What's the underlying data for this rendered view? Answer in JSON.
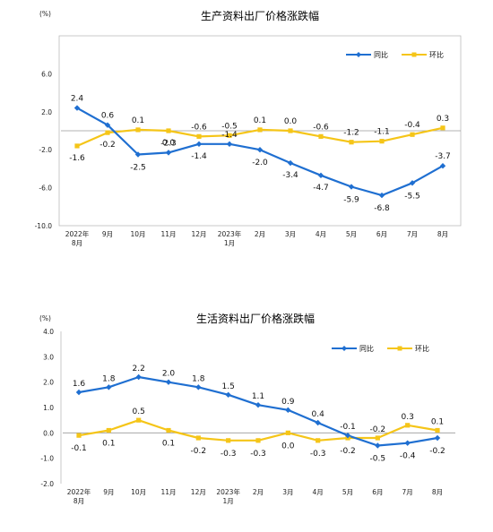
{
  "chart_data": [
    {
      "type": "line",
      "title": "生产资料出厂价格涨跌幅",
      "unit": "(%)",
      "categories": [
        "2022年",
        "9月",
        "10月",
        "11月",
        "12月",
        "2023年",
        "2月",
        "3月",
        "4月",
        "5月",
        "6月",
        "7月",
        "8月"
      ],
      "categories_sub": [
        "8月",
        "",
        "",
        "",
        "",
        "1月",
        "",
        "",
        "",
        "",
        "",
        "",
        ""
      ],
      "yticks": [
        "6.0",
        "2.0",
        "-2.0",
        "-6.0",
        "-10.0"
      ],
      "ylim": [
        -10,
        10
      ],
      "series": [
        {
          "name": "同比",
          "color": "#1f6fd1",
          "marker": "diamond",
          "values": [
            2.4,
            0.6,
            -2.5,
            -2.3,
            -1.4,
            -1.4,
            -2.0,
            -3.4,
            -4.7,
            -5.9,
            -6.8,
            -5.5,
            -3.7
          ],
          "labels": [
            "2.4",
            "0.6",
            "-2.5",
            "-2.3",
            "-1.4",
            "-1.4",
            "-2.0",
            "-3.4",
            "-4.7",
            "-5.9",
            "-6.8",
            "-5.5",
            "-3.7"
          ]
        },
        {
          "name": "环比",
          "color": "#f5c518",
          "marker": "square",
          "values": [
            -1.6,
            -0.2,
            0.1,
            0.0,
            -0.6,
            -0.5,
            0.1,
            0.0,
            -0.6,
            -1.2,
            -1.1,
            -0.4,
            0.3
          ],
          "labels": [
            "-1.6",
            "-0.2",
            "0.1",
            "0.0",
            "-0.6",
            "-0.5",
            "0.1",
            "0.0",
            "-0.6",
            "-1.2",
            "-1.1",
            "-0.4",
            "0.3"
          ]
        }
      ],
      "legend_position": "top-right",
      "grid": false
    },
    {
      "type": "line",
      "title": "生活资料出厂价格涨跌幅",
      "unit": "(%)",
      "categories": [
        "2022年",
        "9月",
        "10月",
        "11月",
        "12月",
        "2023年",
        "2月",
        "3月",
        "4月",
        "5月",
        "6月",
        "7月",
        "8月"
      ],
      "categories_sub": [
        "8月",
        "",
        "",
        "",
        "",
        "1月",
        "",
        "",
        "",
        "",
        "",
        "",
        ""
      ],
      "yticks": [
        "4.0",
        "3.0",
        "2.0",
        "1.0",
        "0.0",
        "-1.0",
        "-2.0"
      ],
      "ylim": [
        -2,
        4
      ],
      "series": [
        {
          "name": "同比",
          "color": "#1f6fd1",
          "marker": "diamond",
          "values": [
            1.6,
            1.8,
            2.2,
            2.0,
            1.8,
            1.5,
            1.1,
            0.9,
            0.4,
            -0.1,
            -0.5,
            -0.4,
            -0.2
          ],
          "labels": [
            "1.6",
            "1.8",
            "2.2",
            "2.0",
            "1.8",
            "1.5",
            "1.1",
            "0.9",
            "0.4",
            "-0.1",
            "-0.5",
            "-0.4",
            "-0.2"
          ]
        },
        {
          "name": "环比",
          "color": "#f5c518",
          "marker": "square",
          "values": [
            -0.1,
            0.1,
            0.5,
            0.1,
            -0.2,
            -0.3,
            -0.3,
            0.0,
            -0.3,
            -0.2,
            -0.2,
            0.3,
            0.1
          ],
          "labels": [
            "-0.1",
            "0.1",
            "0.5",
            "0.1",
            "-0.2",
            "-0.3",
            "-0.3",
            "0.0",
            "-0.3",
            "-0.2",
            "-0.2",
            "0.3",
            "0.1"
          ]
        }
      ],
      "legend_position": "top-right",
      "grid": false
    }
  ]
}
